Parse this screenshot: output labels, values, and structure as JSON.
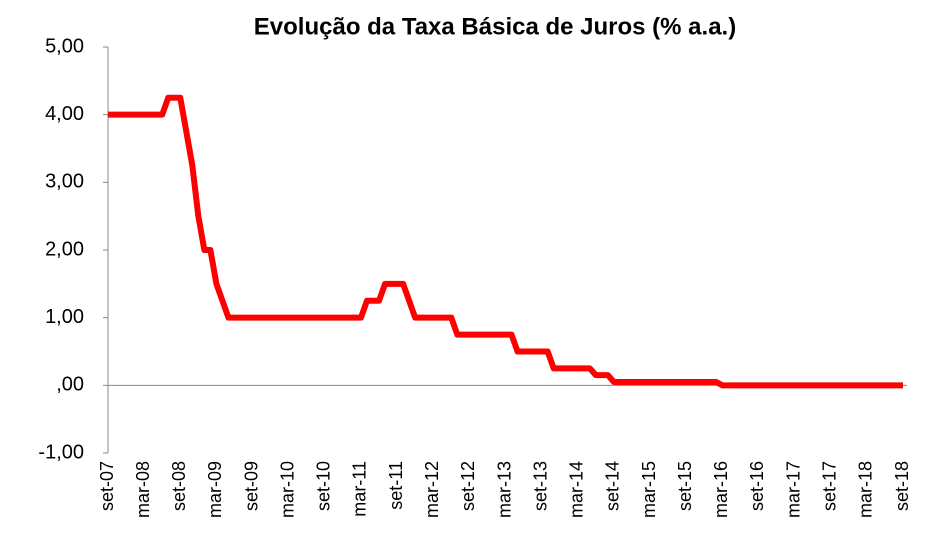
{
  "chart_data": {
    "type": "line",
    "title": "Evolução da Taxa Básica de Juros (% a.a.)",
    "categories": [
      "set-07",
      null,
      null,
      null,
      null,
      null,
      "mar-08",
      null,
      null,
      null,
      null,
      null,
      "set-08",
      null,
      null,
      null,
      null,
      null,
      "mar-09",
      null,
      null,
      null,
      null,
      null,
      "set-09",
      null,
      null,
      null,
      null,
      null,
      "mar-10",
      null,
      null,
      null,
      null,
      null,
      "set-10",
      null,
      null,
      null,
      null,
      null,
      "mar-11",
      null,
      null,
      null,
      null,
      null,
      "set-11",
      null,
      null,
      null,
      null,
      null,
      "mar-12",
      null,
      null,
      null,
      null,
      null,
      "set-12",
      null,
      null,
      null,
      null,
      null,
      "mar-13",
      null,
      null,
      null,
      null,
      null,
      "set-13",
      null,
      null,
      null,
      null,
      null,
      "mar-14",
      null,
      null,
      null,
      null,
      null,
      "set-14",
      null,
      null,
      null,
      null,
      null,
      "mar-15",
      null,
      null,
      null,
      null,
      null,
      "set-15",
      null,
      null,
      null,
      null,
      null,
      "mar-16",
      null,
      null,
      null,
      null,
      null,
      "set-16",
      null,
      null,
      null,
      null,
      null,
      "mar-17",
      null,
      null,
      null,
      null,
      null,
      "set-17",
      null,
      null,
      null,
      null,
      null,
      "mar-18",
      null,
      null,
      null,
      null,
      null,
      "set-18"
    ],
    "series": [
      {
        "color": "#ff0000",
        "values": [
          4,
          4,
          4,
          4,
          4,
          4,
          4,
          4,
          4,
          4,
          4.25,
          4.25,
          4.25,
          3.75,
          3.25,
          2.5,
          2,
          2,
          1.5,
          1.25,
          1,
          1,
          1,
          1,
          1,
          1,
          1,
          1,
          1,
          1,
          1,
          1,
          1,
          1,
          1,
          1,
          1,
          1,
          1,
          1,
          1,
          1,
          1,
          1.25,
          1.25,
          1.25,
          1.5,
          1.5,
          1.5,
          1.5,
          1.25,
          1,
          1,
          1,
          1,
          1,
          1,
          1,
          0.75,
          0.75,
          0.75,
          0.75,
          0.75,
          0.75,
          0.75,
          0.75,
          0.75,
          0.75,
          0.5,
          0.5,
          0.5,
          0.5,
          0.5,
          0.5,
          0.25,
          0.25,
          0.25,
          0.25,
          0.25,
          0.25,
          0.25,
          0.15,
          0.15,
          0.15,
          0.05,
          0.05,
          0.05,
          0.05,
          0.05,
          0.05,
          0.05,
          0.05,
          0.05,
          0.05,
          0.05,
          0.05,
          0.05,
          0.05,
          0.05,
          0.05,
          0.05,
          0.05,
          0,
          0,
          0,
          0,
          0,
          0,
          0,
          0,
          0,
          0,
          0,
          0,
          0,
          0,
          0,
          0,
          0,
          0,
          0,
          0,
          0,
          0,
          0,
          0,
          0,
          0,
          0,
          0,
          0,
          0,
          0
        ]
      }
    ],
    "ylim": [
      -1,
      5
    ],
    "yticks": [
      {
        "value": -1,
        "label": "-1,00"
      },
      {
        "value": 0,
        "label": ",00"
      },
      {
        "value": 1,
        "label": "1,00"
      },
      {
        "value": 2,
        "label": "2,00"
      },
      {
        "value": 3,
        "label": "3,00"
      },
      {
        "value": 4,
        "label": "4,00"
      },
      {
        "value": 5,
        "label": "5,00"
      }
    ],
    "grid": false
  }
}
